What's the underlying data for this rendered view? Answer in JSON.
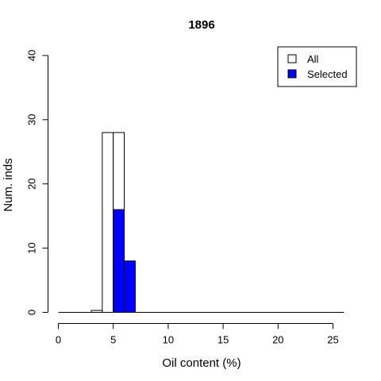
{
  "chart_data": {
    "type": "bar",
    "title": "1896",
    "xlabel": "Oil content (%)",
    "ylabel": "Num. inds",
    "xlim": [
      0,
      26
    ],
    "ylim": [
      0,
      40
    ],
    "x_ticks": [
      "0",
      "5",
      "10",
      "15",
      "20",
      "25"
    ],
    "y_ticks": [
      "0",
      "10",
      "20",
      "30",
      "40"
    ],
    "bin_width": 1,
    "bin_starts": [
      0,
      1,
      2,
      3,
      4,
      5,
      6,
      7,
      8,
      9,
      10,
      11,
      12,
      13,
      14,
      15,
      16,
      17,
      18,
      19,
      20,
      21,
      22,
      23,
      24,
      25
    ],
    "series": [
      {
        "name": "All",
        "color": "#ffffff",
        "values": [
          0,
          0,
          0,
          0.3,
          28,
          28,
          0,
          0,
          0,
          0,
          0,
          0,
          0,
          0,
          0,
          0,
          0,
          0,
          0,
          0,
          0,
          0,
          0,
          0,
          0,
          0
        ]
      },
      {
        "name": "Selected",
        "color": "#0000ff",
        "values": [
          0,
          0,
          0,
          0,
          0,
          16,
          8,
          0,
          0,
          0,
          0,
          0,
          0,
          0,
          0,
          0,
          0,
          0,
          0,
          0,
          0,
          0,
          0,
          0,
          0,
          0
        ]
      }
    ],
    "legend_position": "top-right",
    "grid": false
  }
}
